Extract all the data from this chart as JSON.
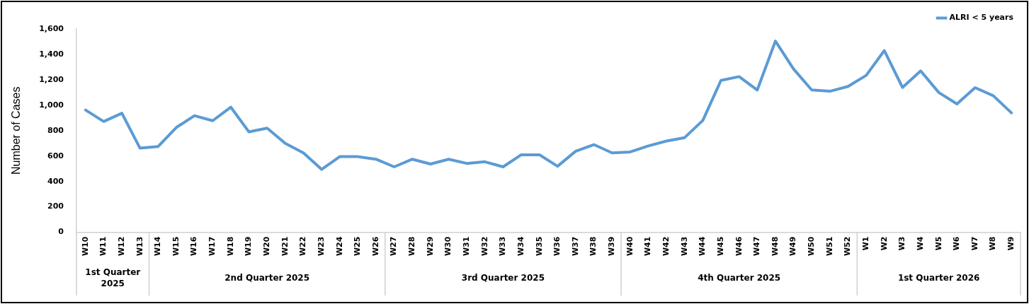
{
  "chart_data": {
    "type": "line",
    "ylabel": "Number of Cases",
    "categories": [
      "W10",
      "W11",
      "W12",
      "W13",
      "W14",
      "W15",
      "W16",
      "W17",
      "W18",
      "W19",
      "W20",
      "W21",
      "W22",
      "W23",
      "W24",
      "W25",
      "W26",
      "W27",
      "W28",
      "W29",
      "W30",
      "W31",
      "W32",
      "W33",
      "W34",
      "W35",
      "W36",
      "W37",
      "W38",
      "W39",
      "W40",
      "W41",
      "W42",
      "W43",
      "W44",
      "W45",
      "W46",
      "W47",
      "W48",
      "W49",
      "W50",
      "W51",
      "W52",
      "W1",
      "W2",
      "W3",
      "W4",
      "W5",
      "W6",
      "W7",
      "W8",
      "W9"
    ],
    "series": [
      {
        "name": "ALRI < 5 years",
        "color": "#5b9bd5",
        "values": [
          962,
          872,
          937,
          662,
          675,
          825,
          918,
          878,
          985,
          790,
          820,
          700,
          625,
          495,
          595,
          595,
          575,
          515,
          575,
          537,
          575,
          542,
          555,
          515,
          610,
          610,
          520,
          638,
          690,
          625,
          632,
          680,
          718,
          745,
          880,
          1195,
          1225,
          1120,
          1505,
          1285,
          1120,
          1110,
          1148,
          1235,
          1430,
          1140,
          1270,
          1100,
          1010,
          1138,
          1075,
          940
        ]
      }
    ],
    "ylim": [
      0,
      1600
    ],
    "yticks": [
      0,
      200,
      400,
      600,
      800,
      {
        "value": 1000,
        "label": "1,000"
      },
      {
        "value": 1200,
        "label": "1,200"
      },
      {
        "value": 1400,
        "label": "1,400"
      },
      {
        "value": 1600,
        "label": "1,600"
      }
    ],
    "annotations": [
      "1st Quarter 2025",
      "2nd Quarter 2025",
      "3rd Quarter 2025",
      "4th Quarter 2025",
      "1st Quarter 2026"
    ],
    "grid": false,
    "legend": "top right",
    "marker": "none",
    "line_style": "solid"
  }
}
